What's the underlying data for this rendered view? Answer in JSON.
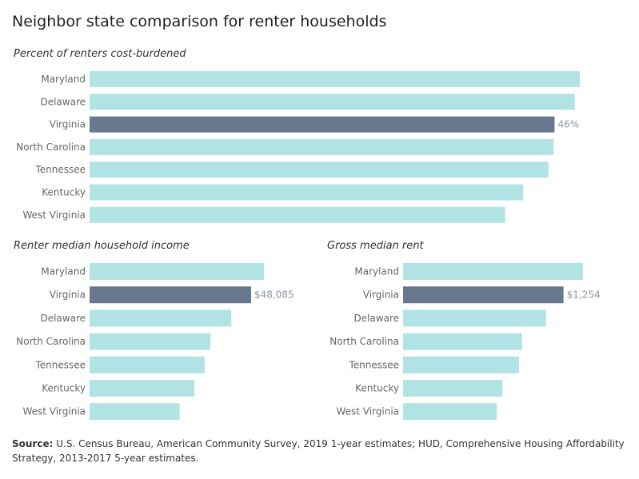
{
  "title": "Neighbor state comparison for renter households",
  "colors": {
    "base": "#b1e3e5",
    "highlight": "#67788e",
    "value_label": "#8a96a3"
  },
  "source": {
    "label": "Source:",
    "text": " U.S. Census Bureau, American Community Survey, 2019 1-year estimates; HUD, Comprehensive Housing Affordability Strategy, 2013-2017 5-year estimates."
  },
  "chart_data": [
    {
      "type": "bar",
      "orientation": "horizontal",
      "title": "Percent of renters cost-burdened",
      "categories": [
        "Maryland",
        "Delaware",
        "Virginia",
        "North Carolina",
        "Tennessee",
        "Kentucky",
        "West Virginia"
      ],
      "values": [
        48.5,
        48.0,
        46.0,
        45.9,
        45.4,
        42.9,
        41.1
      ],
      "highlight": "Virginia",
      "highlight_label": "46%",
      "xlim": [
        0,
        50
      ]
    },
    {
      "type": "bar",
      "orientation": "horizontal",
      "title": "Renter median household income",
      "categories": [
        "Maryland",
        "Virginia",
        "Delaware",
        "North Carolina",
        "Tennessee",
        "Kentucky",
        "West Virginia"
      ],
      "values": [
        51900,
        48085,
        42200,
        36000,
        34300,
        31200,
        26800
      ],
      "highlight": "Virginia",
      "highlight_label": "$48,085",
      "xlim": [
        0,
        60000
      ]
    },
    {
      "type": "bar",
      "orientation": "horizontal",
      "title": "Gross median rent",
      "categories": [
        "Maryland",
        "Virginia",
        "Delaware",
        "North Carolina",
        "Tennessee",
        "Kentucky",
        "West Virginia"
      ],
      "values": [
        1405,
        1254,
        1117,
        930,
        907,
        776,
        732
      ],
      "highlight": "Virginia",
      "highlight_label": "$1,254",
      "xlim": [
        0,
        1600
      ]
    }
  ]
}
